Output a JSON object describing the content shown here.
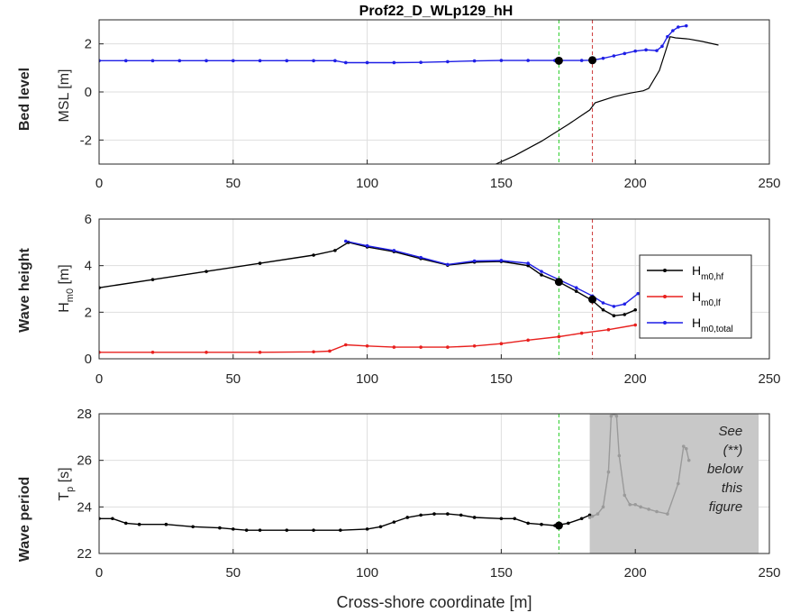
{
  "title": "Prof22_D_WLp129_hH",
  "xlabel": "Cross-shore coordinate [m]",
  "xticks": [
    "0",
    "50",
    "100",
    "150",
    "200",
    "250"
  ],
  "note_lines": [
    "See",
    "(**)",
    "below",
    "this",
    "figure"
  ],
  "colors": {
    "hf": "#000000",
    "lf": "#e8201e",
    "total": "#1f1fe6",
    "green_line": "#22cc22",
    "red_line": "#cc3333",
    "shade": "#c8c8c8"
  },
  "chart_data": [
    {
      "type": "line",
      "row_label": "Bed level",
      "ylabel": "MSL [m]",
      "xlim": [
        0,
        250
      ],
      "ylim": [
        -3,
        3
      ],
      "yticks": [
        "-2",
        "0",
        "2"
      ],
      "grid": true,
      "vlines": [
        {
          "x": 171.5,
          "color": "green"
        },
        {
          "x": 184,
          "color": "red"
        }
      ],
      "markers": [
        {
          "x": 171.5,
          "y": 1.3
        },
        {
          "x": 184,
          "y": 1.32
        }
      ],
      "series": [
        {
          "key": "bed",
          "x": [
            148,
            155,
            165,
            175,
            183,
            185,
            192,
            198,
            203,
            205,
            209,
            213,
            215,
            220,
            225,
            231
          ],
          "y": [
            -3.0,
            -2.65,
            -2.05,
            -1.35,
            -0.75,
            -0.45,
            -0.2,
            -0.05,
            0.05,
            0.15,
            0.9,
            2.3,
            2.25,
            2.2,
            2.1,
            1.95
          ]
        },
        {
          "key": "total",
          "x": [
            0,
            10,
            20,
            30,
            40,
            50,
            60,
            70,
            80,
            88,
            92,
            100,
            110,
            120,
            130,
            140,
            150,
            160,
            170,
            180,
            184,
            188,
            192,
            196,
            200,
            204,
            208,
            210,
            212,
            214,
            216,
            219
          ],
          "y": [
            1.3,
            1.3,
            1.3,
            1.3,
            1.3,
            1.3,
            1.3,
            1.3,
            1.3,
            1.3,
            1.22,
            1.22,
            1.22,
            1.23,
            1.26,
            1.29,
            1.31,
            1.31,
            1.31,
            1.31,
            1.32,
            1.4,
            1.5,
            1.6,
            1.7,
            1.75,
            1.72,
            1.9,
            2.3,
            2.55,
            2.7,
            2.75
          ]
        }
      ]
    },
    {
      "type": "line",
      "row_label": "Wave height",
      "ylabel_main": "H",
      "ylabel_sub": "m0",
      "ylabel_unit": " [m]",
      "xlim": [
        0,
        250
      ],
      "ylim": [
        0,
        6
      ],
      "yticks": [
        "0",
        "2",
        "4",
        "6"
      ],
      "grid": true,
      "vlines": [
        {
          "x": 171.5,
          "color": "green"
        },
        {
          "x": 184,
          "color": "red"
        }
      ],
      "markers": [
        {
          "x": 171.5,
          "y": 3.3
        },
        {
          "x": 184,
          "y": 2.55
        }
      ],
      "legend": {
        "placement": "right",
        "entries": [
          {
            "main": "H",
            "sub": "m0,hf",
            "key": "hf"
          },
          {
            "main": "H",
            "sub": "m0,lf",
            "key": "lf"
          },
          {
            "main": "H",
            "sub": "m0,total",
            "key": "total"
          }
        ]
      },
      "series": [
        {
          "key": "hf",
          "x": [
            0,
            20,
            40,
            60,
            80,
            88,
            93,
            100,
            110,
            120,
            130,
            140,
            150,
            160,
            165,
            171.5,
            178,
            184,
            188,
            192,
            196,
            200
          ],
          "y": [
            3.05,
            3.4,
            3.75,
            4.1,
            4.45,
            4.65,
            5.0,
            4.8,
            4.6,
            4.3,
            4.02,
            4.15,
            4.18,
            4.0,
            3.6,
            3.3,
            2.9,
            2.5,
            2.1,
            1.85,
            1.9,
            2.1
          ]
        },
        {
          "key": "total",
          "x": [
            92,
            100,
            110,
            120,
            130,
            140,
            150,
            160,
            165,
            171.5,
            178,
            184,
            188,
            192,
            196,
            201
          ],
          "y": [
            5.05,
            4.85,
            4.65,
            4.35,
            4.05,
            4.2,
            4.22,
            4.1,
            3.75,
            3.4,
            3.05,
            2.7,
            2.4,
            2.25,
            2.35,
            2.8
          ]
        },
        {
          "key": "lf",
          "x": [
            0,
            20,
            40,
            60,
            80,
            86,
            92,
            100,
            110,
            120,
            130,
            140,
            150,
            160,
            171.5,
            180,
            190,
            200
          ],
          "y": [
            0.28,
            0.28,
            0.28,
            0.28,
            0.3,
            0.33,
            0.6,
            0.55,
            0.5,
            0.5,
            0.5,
            0.55,
            0.65,
            0.8,
            0.95,
            1.1,
            1.25,
            1.45
          ]
        }
      ]
    },
    {
      "type": "line",
      "row_label": "Wave period",
      "ylabel_main": "T",
      "ylabel_sub": "p",
      "ylabel_unit": " [s]",
      "xlim": [
        0,
        250
      ],
      "ylim": [
        22,
        28
      ],
      "yticks": [
        "22",
        "24",
        "26",
        "28"
      ],
      "grid": true,
      "shaded_region": [
        183,
        246
      ],
      "vlines": [
        {
          "x": 171.5,
          "color": "green"
        }
      ],
      "markers": [
        {
          "x": 171.5,
          "y": 23.2
        }
      ],
      "series": [
        {
          "key": "tp",
          "x": [
            0,
            5,
            10,
            15,
            25,
            35,
            45,
            50,
            55,
            60,
            70,
            80,
            90,
            100,
            105,
            110,
            115,
            120,
            125,
            130,
            135,
            140,
            150,
            155,
            160,
            165,
            170,
            175,
            180,
            183
          ],
          "y": [
            23.5,
            23.5,
            23.3,
            23.25,
            23.25,
            23.15,
            23.1,
            23.05,
            23.0,
            23.0,
            23.0,
            23.0,
            23.0,
            23.05,
            23.15,
            23.35,
            23.55,
            23.65,
            23.7,
            23.7,
            23.65,
            23.55,
            23.5,
            23.5,
            23.3,
            23.25,
            23.2,
            23.3,
            23.5,
            23.65
          ]
        },
        {
          "key": "tp_gray",
          "x": [
            183,
            184,
            186,
            188,
            190,
            191,
            192,
            193,
            194,
            196,
            198,
            200,
            202,
            205,
            208,
            212,
            216,
            218,
            219,
            220
          ],
          "y": [
            23.55,
            23.6,
            23.7,
            24.0,
            25.5,
            27.9,
            28.0,
            27.9,
            26.2,
            24.5,
            24.1,
            24.1,
            24.0,
            23.9,
            23.8,
            23.7,
            25.0,
            26.6,
            26.5,
            26.0
          ]
        }
      ]
    }
  ]
}
